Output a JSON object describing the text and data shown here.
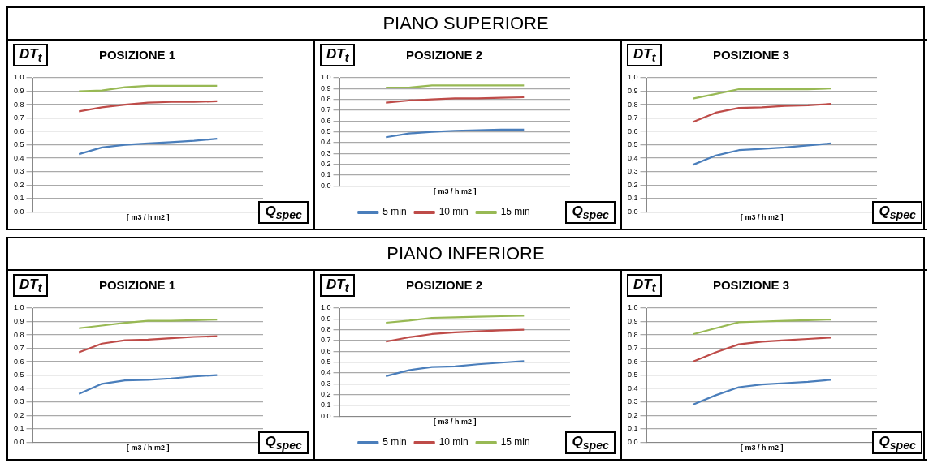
{
  "chart_data": [
    {
      "type": "other",
      "title": "PIANO SUPERIORE"
    },
    {
      "type": "line",
      "title": "POSIZIONE 1",
      "ylabel": "DT$_{t}$",
      "xlabel": "[ m3 / h m2 ]",
      "annotations": [
        "Q$_{spec}$"
      ],
      "categories": [
        null,
        null,
        null,
        null,
        null,
        null,
        null,
        null,
        null,
        null,
        null
      ],
      "ylim": [
        0,
        1
      ],
      "yticks": [
        {
          "value": 0,
          "label": "0,0"
        },
        {
          "value": 0.1,
          "label": "0,1"
        },
        {
          "value": 0.2,
          "label": "0,2"
        },
        {
          "value": 0.3,
          "label": "0,3"
        },
        {
          "value": 0.4,
          "label": "0,4"
        },
        {
          "value": 0.5,
          "label": "0,5"
        },
        {
          "value": 0.6,
          "label": "0,6"
        },
        {
          "value": 0.7,
          "label": "0,7"
        },
        {
          "value": 0.8,
          "label": "0,8"
        },
        {
          "value": 0.9,
          "label": "0,9"
        },
        {
          "value": 1,
          "label": "1,0"
        }
      ],
      "grid": "y",
      "marker": "none",
      "tick_labels": "y",
      "series": [
        {
          "color": "#4a7ebb",
          "values": [
            null,
            null,
            0.43,
            0.48,
            0.5,
            0.51,
            0.52,
            0.53,
            0.545,
            null,
            null
          ]
        },
        {
          "color": "#be4b48",
          "values": [
            null,
            null,
            0.75,
            0.78,
            0.8,
            0.815,
            0.82,
            0.82,
            0.825,
            null,
            null
          ]
        },
        {
          "color": "#98b954",
          "values": [
            null,
            null,
            0.9,
            0.905,
            0.93,
            0.94,
            0.94,
            0.94,
            0.94,
            null,
            null
          ]
        }
      ]
    },
    {
      "type": "line",
      "title": "POSIZIONE 2",
      "ylabel": "DT$_{t}$",
      "xlabel": "[ m3 / h m2 ]",
      "annotations": [
        "Q$_{spec}$"
      ],
      "categories": [
        null,
        null,
        null,
        null,
        null,
        null,
        null,
        null,
        null,
        null,
        null
      ],
      "ylim": [
        0,
        1
      ],
      "yticks": [
        {
          "value": 0,
          "label": "0,0"
        },
        {
          "value": 0.1,
          "label": "0,1"
        },
        {
          "value": 0.2,
          "label": "0,2"
        },
        {
          "value": 0.3,
          "label": "0,3"
        },
        {
          "value": 0.4,
          "label": "0,4"
        },
        {
          "value": 0.5,
          "label": "0,5"
        },
        {
          "value": 0.6,
          "label": "0,6"
        },
        {
          "value": 0.7,
          "label": "0,7"
        },
        {
          "value": 0.8,
          "label": "0,8"
        },
        {
          "value": 0.9,
          "label": "0,9"
        },
        {
          "value": 1,
          "label": "1,0"
        }
      ],
      "grid": "y",
      "marker": "none",
      "tick_labels": "y",
      "legend": "bottom",
      "series": [
        {
          "name": "5 min",
          "color": "#4a7ebb",
          "values": [
            null,
            null,
            0.45,
            0.485,
            0.5,
            0.51,
            0.515,
            0.52,
            0.52,
            null,
            null
          ]
        },
        {
          "name": "10 min",
          "color": "#be4b48",
          "values": [
            null,
            null,
            0.77,
            0.79,
            0.8,
            0.81,
            0.81,
            0.815,
            0.82,
            null,
            null
          ]
        },
        {
          "name": "15 min",
          "color": "#98b954",
          "values": [
            null,
            null,
            0.91,
            0.91,
            0.93,
            0.93,
            0.93,
            0.93,
            0.93,
            null,
            null
          ]
        }
      ]
    },
    {
      "type": "line",
      "title": "POSIZIONE 3",
      "ylabel": "DT$_{t}$",
      "xlabel": "[ m3 / h m2 ]",
      "annotations": [
        "Q$_{spec}$"
      ],
      "categories": [
        null,
        null,
        null,
        null,
        null,
        null,
        null,
        null,
        null,
        null,
        null
      ],
      "ylim": [
        0,
        1
      ],
      "yticks": [
        {
          "value": 0,
          "label": "0,0"
        },
        {
          "value": 0.1,
          "label": "0,1"
        },
        {
          "value": 0.2,
          "label": "0,2"
        },
        {
          "value": 0.3,
          "label": "0,3"
        },
        {
          "value": 0.4,
          "label": "0,4"
        },
        {
          "value": 0.5,
          "label": "0,5"
        },
        {
          "value": 0.6,
          "label": "0,6"
        },
        {
          "value": 0.7,
          "label": "0,7"
        },
        {
          "value": 0.8,
          "label": "0,8"
        },
        {
          "value": 0.9,
          "label": "0,9"
        },
        {
          "value": 1,
          "label": "1,0"
        }
      ],
      "grid": "y",
      "marker": "none",
      "tick_labels": "y",
      "series": [
        {
          "color": "#4a7ebb",
          "values": [
            null,
            null,
            0.35,
            0.42,
            0.46,
            0.47,
            0.48,
            0.495,
            0.51,
            null,
            null
          ]
        },
        {
          "color": "#be4b48",
          "values": [
            null,
            null,
            0.67,
            0.74,
            0.775,
            0.78,
            0.79,
            0.795,
            0.805,
            null,
            null
          ]
        },
        {
          "color": "#98b954",
          "values": [
            null,
            null,
            0.845,
            0.88,
            0.915,
            0.915,
            0.915,
            0.915,
            0.92,
            null,
            null
          ]
        }
      ]
    },
    {
      "type": "other",
      "title": "PIANO INFERIORE"
    },
    {
      "type": "line",
      "title": "POSIZIONE 1",
      "ylabel": "DT$_{t}$",
      "xlabel": "[ m3 / h m2 ]",
      "annotations": [
        "Q$_{spec}$"
      ],
      "categories": [
        null,
        null,
        null,
        null,
        null,
        null,
        null,
        null,
        null,
        null,
        null
      ],
      "ylim": [
        0,
        1
      ],
      "yticks": [
        {
          "value": 0,
          "label": "0,0"
        },
        {
          "value": 0.1,
          "label": "0,1"
        },
        {
          "value": 0.2,
          "label": "0,2"
        },
        {
          "value": 0.3,
          "label": "0,3"
        },
        {
          "value": 0.4,
          "label": "0,4"
        },
        {
          "value": 0.5,
          "label": "0,5"
        },
        {
          "value": 0.6,
          "label": "0,6"
        },
        {
          "value": 0.7,
          "label": "0,7"
        },
        {
          "value": 0.8,
          "label": "0,8"
        },
        {
          "value": 0.9,
          "label": "0,9"
        },
        {
          "value": 1,
          "label": "1,0"
        }
      ],
      "grid": "y",
      "marker": "none",
      "tick_labels": "y",
      "series": [
        {
          "color": "#4a7ebb",
          "values": [
            null,
            null,
            0.36,
            0.435,
            0.46,
            0.465,
            0.475,
            0.49,
            0.5,
            null,
            null
          ]
        },
        {
          "color": "#be4b48",
          "values": [
            null,
            null,
            0.67,
            0.735,
            0.76,
            0.765,
            0.775,
            0.785,
            0.79,
            null,
            null
          ]
        },
        {
          "color": "#98b954",
          "values": [
            null,
            null,
            0.85,
            0.87,
            0.89,
            0.905,
            0.905,
            0.91,
            0.915,
            null,
            null
          ]
        }
      ]
    },
    {
      "type": "line",
      "title": "POSIZIONE 2",
      "ylabel": "DT$_{t}$",
      "xlabel": "[ m3 / h m2 ]",
      "annotations": [
        "Q$_{spec}$"
      ],
      "categories": [
        null,
        null,
        null,
        null,
        null,
        null,
        null,
        null,
        null,
        null,
        null
      ],
      "ylim": [
        0,
        1
      ],
      "yticks": [
        {
          "value": 0,
          "label": "0,0"
        },
        {
          "value": 0.1,
          "label": "0,1"
        },
        {
          "value": 0.2,
          "label": "0,2"
        },
        {
          "value": 0.3,
          "label": "0,3"
        },
        {
          "value": 0.4,
          "label": "0,4"
        },
        {
          "value": 0.5,
          "label": "0,5"
        },
        {
          "value": 0.6,
          "label": "0,6"
        },
        {
          "value": 0.7,
          "label": "0,7"
        },
        {
          "value": 0.8,
          "label": "0,8"
        },
        {
          "value": 0.9,
          "label": "0,9"
        },
        {
          "value": 1,
          "label": "1,0"
        }
      ],
      "grid": "y",
      "marker": "none",
      "tick_labels": "y",
      "legend": "bottom",
      "series": [
        {
          "name": "5 min",
          "color": "#4a7ebb",
          "values": [
            null,
            null,
            0.37,
            0.425,
            0.455,
            0.46,
            0.48,
            0.495,
            0.51,
            null,
            null
          ]
        },
        {
          "name": "10 min",
          "color": "#be4b48",
          "values": [
            null,
            null,
            0.69,
            0.73,
            0.76,
            0.775,
            0.785,
            0.795,
            0.8,
            null,
            null
          ]
        },
        {
          "name": "15 min",
          "color": "#98b954",
          "values": [
            null,
            null,
            0.865,
            0.885,
            0.91,
            0.915,
            0.92,
            0.925,
            0.93,
            null,
            null
          ]
        }
      ]
    },
    {
      "type": "line",
      "title": "POSIZIONE 3",
      "ylabel": "DT$_{t}$",
      "xlabel": "[ m3 / h m2 ]",
      "annotations": [
        "Q$_{spec}$"
      ],
      "categories": [
        null,
        null,
        null,
        null,
        null,
        null,
        null,
        null,
        null,
        null,
        null
      ],
      "ylim": [
        0,
        1
      ],
      "yticks": [
        {
          "value": 0,
          "label": "0,0"
        },
        {
          "value": 0.1,
          "label": "0,1"
        },
        {
          "value": 0.2,
          "label": "0,2"
        },
        {
          "value": 0.3,
          "label": "0,3"
        },
        {
          "value": 0.4,
          "label": "0,4"
        },
        {
          "value": 0.5,
          "label": "0,5"
        },
        {
          "value": 0.6,
          "label": "0,6"
        },
        {
          "value": 0.7,
          "label": "0,7"
        },
        {
          "value": 0.8,
          "label": "0,8"
        },
        {
          "value": 0.9,
          "label": "0,9"
        },
        {
          "value": 1,
          "label": "1,0"
        }
      ],
      "grid": "y",
      "marker": "none",
      "tick_labels": "y",
      "series": [
        {
          "color": "#4a7ebb",
          "values": [
            null,
            null,
            0.28,
            0.35,
            0.41,
            0.43,
            0.44,
            0.45,
            0.465,
            null,
            null
          ]
        },
        {
          "color": "#be4b48",
          "values": [
            null,
            null,
            0.6,
            0.67,
            0.73,
            0.75,
            0.76,
            0.77,
            0.78,
            null,
            null
          ]
        },
        {
          "color": "#98b954",
          "values": [
            null,
            null,
            0.805,
            0.85,
            0.895,
            0.9,
            0.905,
            0.91,
            0.915,
            null,
            null
          ]
        }
      ]
    }
  ]
}
